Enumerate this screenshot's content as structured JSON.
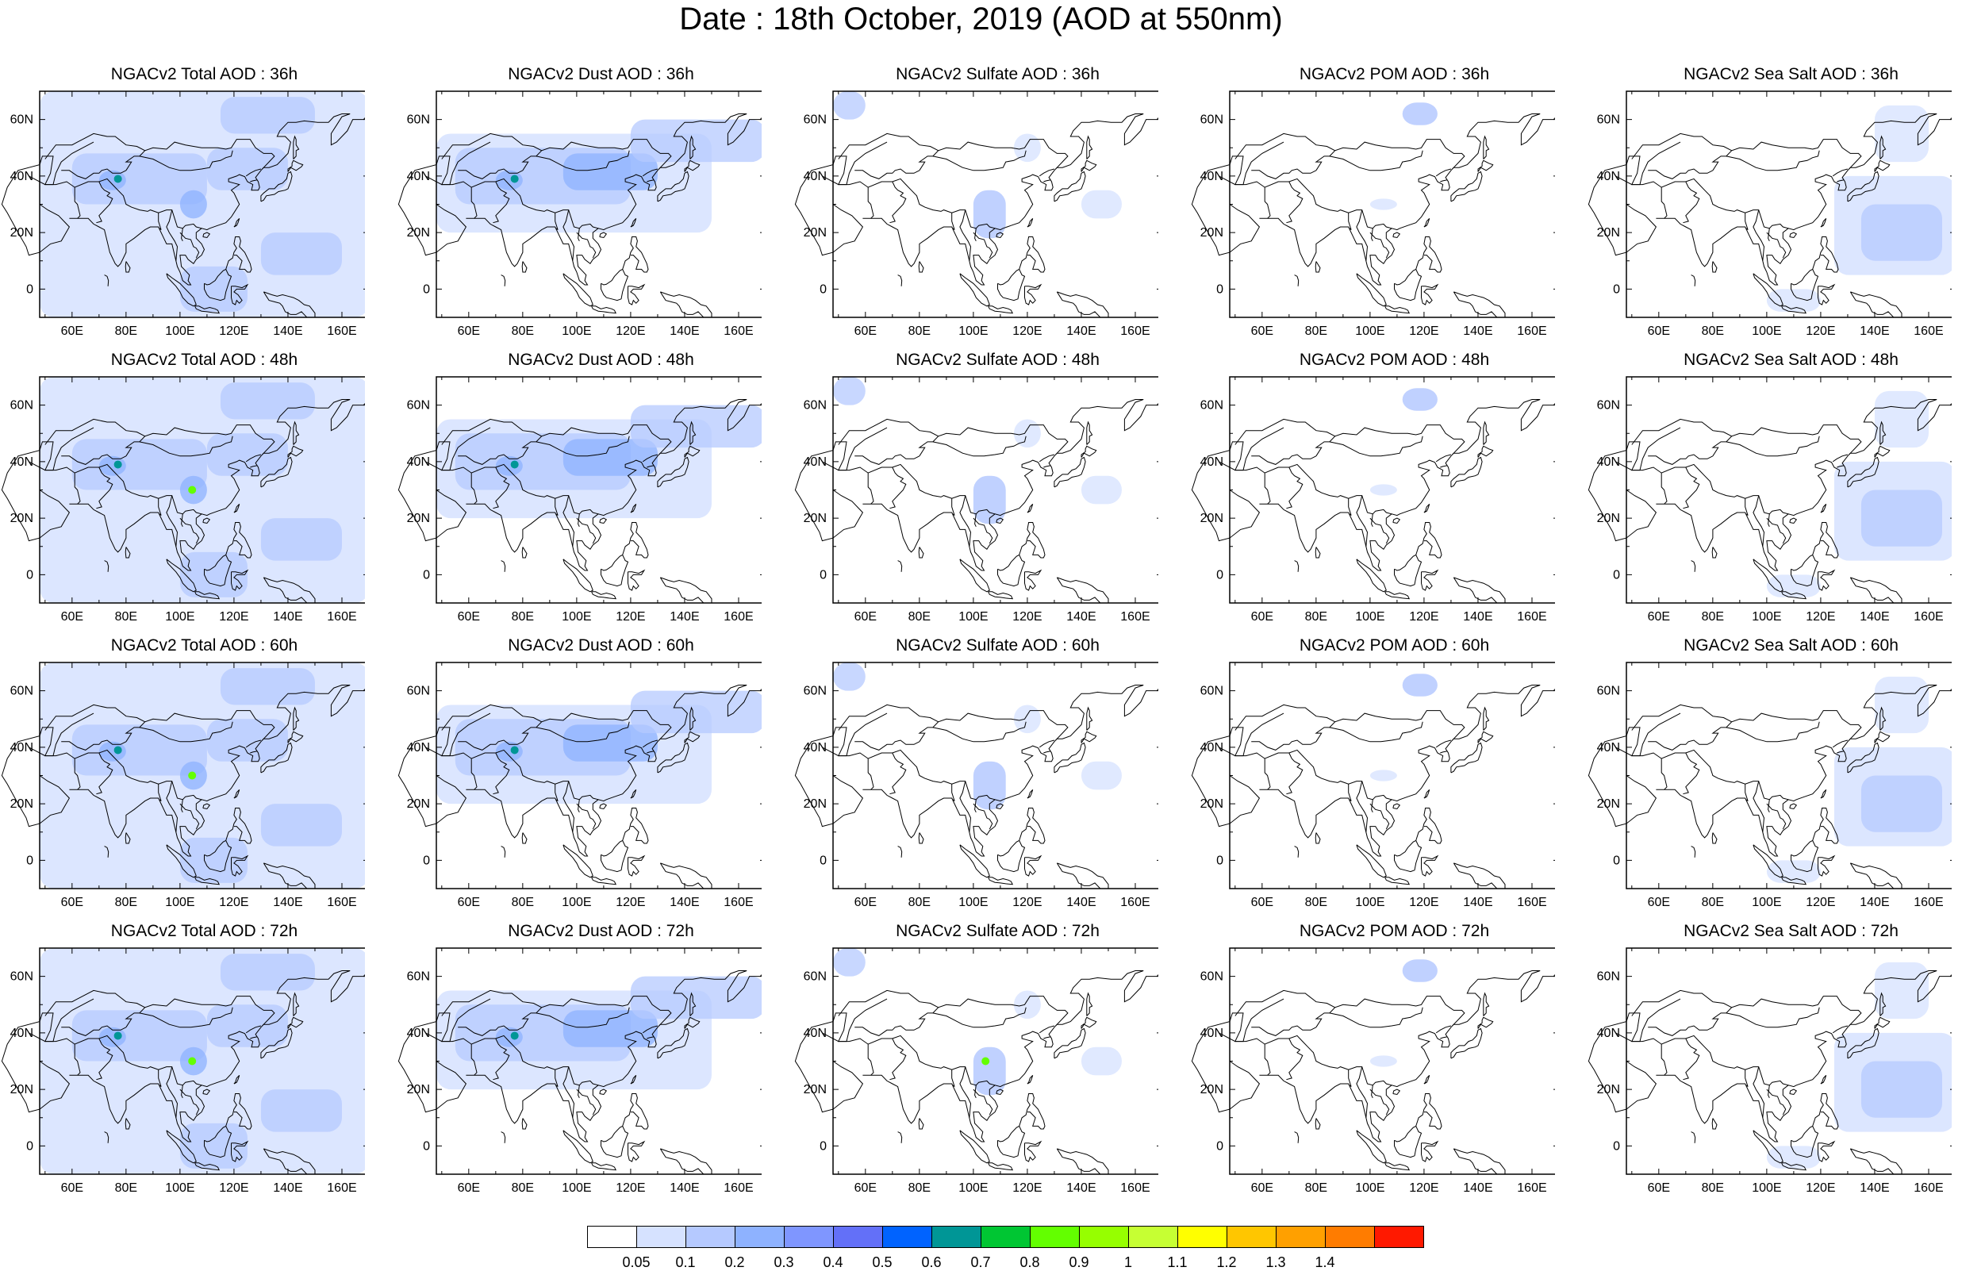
{
  "title": "Date : 18th October, 2019 (AOD at 550nm)",
  "panel_titles": [
    [
      "NGACv2 Total AOD : 36h",
      "NGACv2 Dust AOD : 36h",
      "NGACv2 Sulfate AOD : 36h",
      "NGACv2 POM AOD : 36h",
      "NGACv2 Sea Salt AOD : 36h"
    ],
    [
      "NGACv2 Total AOD : 48h",
      "NGACv2 Dust AOD : 48h",
      "NGACv2 Sulfate AOD : 48h",
      "NGACv2 POM AOD : 48h",
      "NGACv2 Sea Salt AOD : 48h"
    ],
    [
      "NGACv2 Total AOD : 60h",
      "NGACv2 Dust AOD : 60h",
      "NGACv2 Sulfate AOD : 60h",
      "NGACv2 POM AOD : 60h",
      "NGACv2 Sea Salt AOD : 60h"
    ],
    [
      "NGACv2 Total AOD : 72h",
      "NGACv2 Dust AOD : 72h",
      "NGACv2 Sulfate AOD : 72h",
      "NGACv2 POM AOD : 72h",
      "NGACv2 Sea Salt  AOD : 72h"
    ]
  ],
  "map_extent": {
    "lon": [
      48,
      170
    ],
    "lat": [
      -10,
      70
    ]
  },
  "lon_ticks": [
    {
      "value": 60,
      "label": "60E"
    },
    {
      "value": 80,
      "label": "80E"
    },
    {
      "value": 100,
      "label": "100E"
    },
    {
      "value": 120,
      "label": "120E"
    },
    {
      "value": 140,
      "label": "140E"
    },
    {
      "value": 160,
      "label": "160E"
    }
  ],
  "lat_ticks": [
    {
      "value": 60,
      "label": "60N"
    },
    {
      "value": 40,
      "label": "40N"
    },
    {
      "value": 20,
      "label": "20N"
    },
    {
      "value": 0,
      "label": "0"
    }
  ],
  "colorbar": {
    "colors": [
      "#ffffff",
      "#d6e2ff",
      "#b5c9ff",
      "#8eb2ff",
      "#7f96ff",
      "#6370f8",
      "#0063ff",
      "#009696",
      "#00c633",
      "#63ff00",
      "#96ff00",
      "#c6ff33",
      "#ffff00",
      "#ffc600",
      "#ffa000",
      "#ff7c00",
      "#ff1900"
    ],
    "labels": [
      "0.05",
      "0.1",
      "0.2",
      "0.3",
      "0.4",
      "0.5",
      "0.6",
      "0.7",
      "0.8",
      "0.9",
      "1",
      "1.1",
      "1.2",
      "1.3",
      "1.4"
    ]
  }
}
